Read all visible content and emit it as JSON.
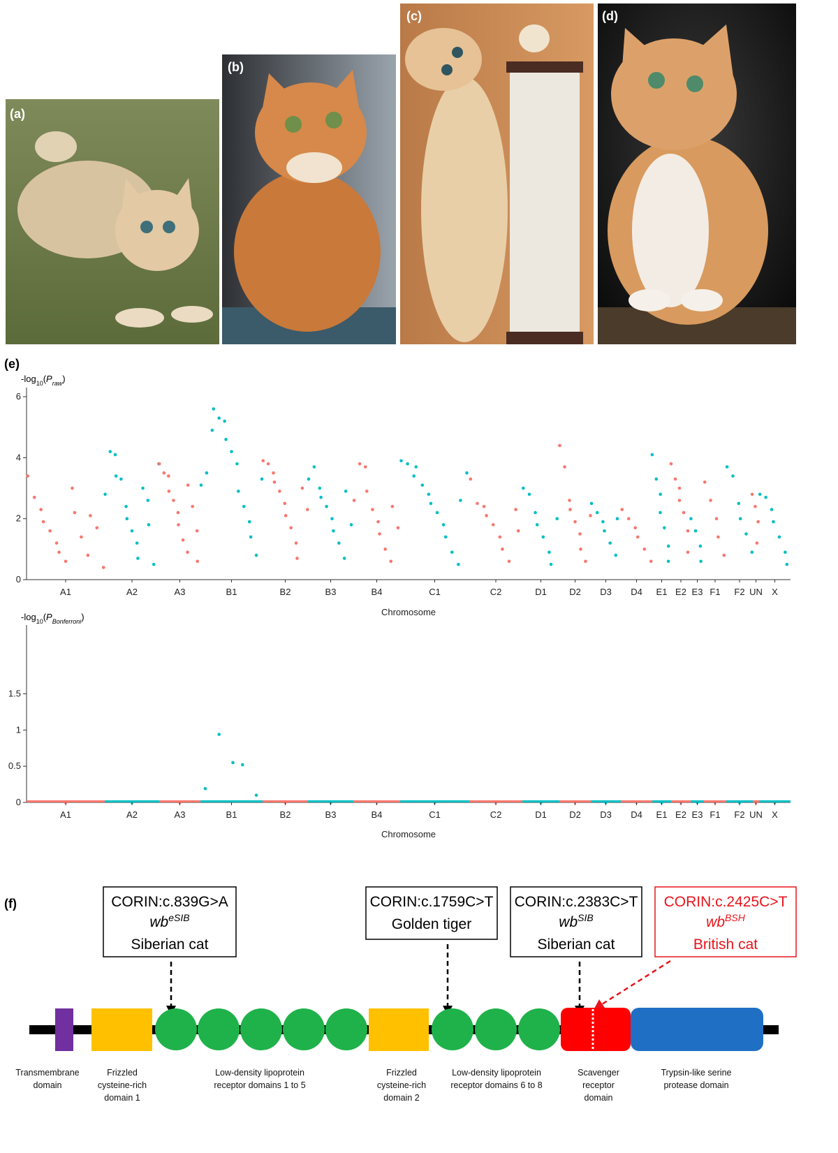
{
  "panels": {
    "a": "(a)",
    "b": "(b)",
    "c": "(c)",
    "d": "(d)",
    "e": "(e)",
    "f": "(f)"
  },
  "chart_data": [
    {
      "type": "scatter",
      "y_label": [
        "-log",
        "10",
        "(",
        "P",
        "raw",
        ")"
      ],
      "x_label": "Chromosome",
      "categories": [
        "A1",
        "A2",
        "A3",
        "B1",
        "B2",
        "B3",
        "B4",
        "C1",
        "C2",
        "D1",
        "D2",
        "D3",
        "D4",
        "E1",
        "E2",
        "E3",
        "F1",
        "F2",
        "UN",
        "X"
      ],
      "series": [
        {
          "color": "#f8766d",
          "values": [
            3.4,
            2.7,
            2.3,
            1.9,
            1.6,
            1.2,
            0.9,
            0.6,
            3.0,
            2.2,
            1.4,
            0.8,
            2.1,
            1.7,
            0.4
          ]
        },
        {
          "color": "#00bfc4",
          "values": [
            2.8,
            4.2,
            4.1,
            3.4,
            3.3,
            2.4,
            2.0,
            1.6,
            1.2,
            0.7,
            3.0,
            2.6,
            1.8,
            0.5,
            3.8
          ]
        },
        {
          "color": "#f8766d",
          "values": [
            3.8,
            3.5,
            3.4,
            2.9,
            2.6,
            2.2,
            1.8,
            1.3,
            0.9,
            3.1,
            2.4,
            1.6,
            0.6
          ]
        },
        {
          "color": "#00bfc4",
          "values": [
            3.1,
            3.5,
            4.9,
            5.6,
            5.3,
            5.2,
            4.6,
            4.2,
            3.8,
            2.9,
            2.4,
            1.9,
            1.4,
            0.8,
            3.3
          ]
        },
        {
          "color": "#f8766d",
          "values": [
            3.9,
            3.8,
            3.5,
            3.2,
            2.9,
            2.5,
            2.1,
            1.7,
            1.2,
            0.7,
            3.0,
            2.3
          ]
        },
        {
          "color": "#00bfc4",
          "values": [
            3.3,
            3.7,
            3.0,
            2.7,
            2.4,
            2.0,
            1.6,
            1.2,
            0.7,
            2.9,
            1.8
          ]
        },
        {
          "color": "#f8766d",
          "values": [
            2.6,
            3.8,
            3.7,
            2.9,
            2.3,
            1.9,
            1.5,
            1.0,
            0.6,
            2.4,
            1.7
          ]
        },
        {
          "color": "#00bfc4",
          "values": [
            3.9,
            3.8,
            3.4,
            3.7,
            3.1,
            2.8,
            2.5,
            2.2,
            1.8,
            1.4,
            0.9,
            0.5,
            2.6,
            3.5
          ]
        },
        {
          "color": "#f8766d",
          "values": [
            3.3,
            2.5,
            2.4,
            2.1,
            1.8,
            1.4,
            1.0,
            0.6,
            2.3,
            1.6
          ]
        },
        {
          "color": "#00bfc4",
          "values": [
            3.0,
            2.8,
            2.2,
            1.8,
            1.4,
            0.9,
            0.5,
            2.0
          ]
        },
        {
          "color": "#f8766d",
          "values": [
            4.4,
            3.7,
            2.6,
            2.3,
            1.9,
            1.5,
            1.0,
            0.6,
            2.1
          ]
        },
        {
          "color": "#00bfc4",
          "values": [
            2.5,
            2.2,
            1.9,
            1.6,
            1.2,
            0.8,
            2.0
          ]
        },
        {
          "color": "#f8766d",
          "values": [
            2.3,
            2.0,
            1.7,
            1.4,
            1.0,
            0.6
          ]
        },
        {
          "color": "#00bfc4",
          "values": [
            4.1,
            3.3,
            2.8,
            2.2,
            1.7,
            1.1,
            0.6
          ]
        },
        {
          "color": "#f8766d",
          "values": [
            3.8,
            3.3,
            3.0,
            2.6,
            2.2,
            1.6,
            0.9
          ]
        },
        {
          "color": "#00bfc4",
          "values": [
            2.0,
            1.6,
            1.1,
            0.6
          ]
        },
        {
          "color": "#f8766d",
          "values": [
            3.2,
            2.6,
            2.0,
            1.4,
            0.8
          ]
        },
        {
          "color": "#00bfc4",
          "values": [
            3.7,
            3.4,
            2.5,
            2.0,
            1.5,
            0.9
          ]
        },
        {
          "color": "#f8766d",
          "values": [
            2.8,
            2.4,
            1.9,
            1.2
          ]
        },
        {
          "color": "#00bfc4",
          "values": [
            2.8,
            2.7,
            2.3,
            1.9,
            1.4,
            0.9,
            0.5
          ]
        }
      ],
      "ylim": [
        0,
        6.3
      ],
      "yticks": [
        0,
        2,
        4,
        6
      ]
    },
    {
      "type": "scatter",
      "y_label": [
        "-log",
        "10",
        "(",
        "P",
        "Bonferroni",
        ")"
      ],
      "x_label": "Chromosome",
      "categories": [
        "A1",
        "A2",
        "A3",
        "B1",
        "B2",
        "B3",
        "B4",
        "C1",
        "C2",
        "D1",
        "D2",
        "D3",
        "D4",
        "E1",
        "E2",
        "E3",
        "F1",
        "F2",
        "UN",
        "X"
      ],
      "series": [
        {
          "color": "#f8766d",
          "values": [
            0
          ]
        },
        {
          "color": "#00bfc4",
          "values": [
            0
          ]
        },
        {
          "color": "#f8766d",
          "values": [
            0
          ]
        },
        {
          "color": "#00bfc4",
          "values": [
            0.19,
            0.94,
            0.55,
            0.52,
            0.1
          ]
        },
        {
          "color": "#f8766d",
          "values": [
            0
          ]
        },
        {
          "color": "#00bfc4",
          "values": [
            0
          ]
        },
        {
          "color": "#f8766d",
          "values": [
            0
          ]
        },
        {
          "color": "#00bfc4",
          "values": [
            0
          ]
        },
        {
          "color": "#f8766d",
          "values": [
            0
          ]
        },
        {
          "color": "#00bfc4",
          "values": [
            0
          ]
        },
        {
          "color": "#f8766d",
          "values": [
            0
          ]
        },
        {
          "color": "#00bfc4",
          "values": [
            0
          ]
        },
        {
          "color": "#f8766d",
          "values": [
            0
          ]
        },
        {
          "color": "#00bfc4",
          "values": [
            0
          ]
        },
        {
          "color": "#f8766d",
          "values": [
            0
          ]
        },
        {
          "color": "#00bfc4",
          "values": [
            0
          ]
        },
        {
          "color": "#f8766d",
          "values": [
            0
          ]
        },
        {
          "color": "#00bfc4",
          "values": [
            0
          ]
        },
        {
          "color": "#f8766d",
          "values": [
            0
          ]
        },
        {
          "color": "#00bfc4",
          "values": [
            0
          ]
        }
      ],
      "ylim": [
        0,
        2.45
      ],
      "yticks": [
        0,
        0.5,
        1,
        1.5
      ],
      "baseline_strip": true
    }
  ],
  "diagram": {
    "variants": [
      {
        "line1": "CORIN:c.839G>A",
        "allele": "wb",
        "allele_sup": "eSIB",
        "breed": "Siberian cat"
      },
      {
        "line1": "CORIN:c.1759C>T",
        "breed": "Golden tiger"
      },
      {
        "line1": "CORIN:c.2383C>T",
        "allele": "wb",
        "allele_sup": "SIB",
        "breed": "Siberian cat"
      },
      {
        "line1": "CORIN:c.2425C>T",
        "allele": "wb",
        "allele_sup": "BSH",
        "breed": "British cat"
      }
    ],
    "domains": [
      [
        "Transmembrane",
        "domain"
      ],
      [
        "Frizzled",
        "cysteine-rich",
        "domain 1"
      ],
      [
        "Low-density lipoprotein",
        "receptor domains 1 to 5"
      ],
      [
        "Frizzled",
        "cysteine-rich",
        "domain 2"
      ],
      [
        "Low-density lipoprotein",
        "receptor domains 6 to 8"
      ],
      [
        "Scavenger",
        "receptor",
        "domain"
      ],
      [
        "Trypsin-like serine",
        "protease domain"
      ]
    ]
  }
}
